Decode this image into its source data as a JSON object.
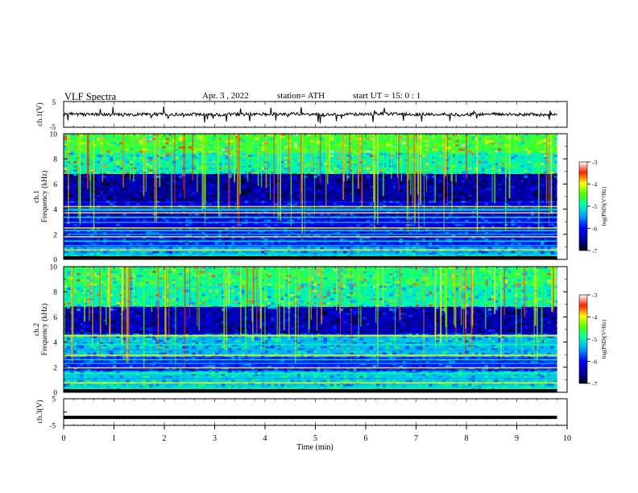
{
  "header": {
    "title": "VLF  Spectra",
    "date": "Apr. 3  , 2022",
    "station": "station= ATH",
    "start": "start  UT  =    15: 0   : 1"
  },
  "chart_data": [
    {
      "type": "line",
      "panel": "ch1-waveform",
      "ylabel": "ch.1(V)",
      "ylim": [
        -5,
        5
      ],
      "yticks": [
        5,
        -5
      ],
      "xlim": [
        0,
        10
      ],
      "data_extent_min": 9.8,
      "baseline": 0,
      "amplitude_typical": 0.6,
      "spike_amplitude_max": 3.5,
      "color": "#000000"
    },
    {
      "type": "heatmap",
      "panel": "ch1-spectrogram",
      "ylabel": "Frequency  (kHz)",
      "channel_label": "ch.1",
      "ylim": [
        0,
        10
      ],
      "yticks": [
        0,
        2,
        4,
        6,
        8,
        10
      ],
      "xlim": [
        0,
        10
      ],
      "data_extent_min": 9.8,
      "colorbar": {
        "label": "log(PSD)(V²/Hz)",
        "range": [
          -7,
          -3
        ],
        "ticks": [
          -3,
          -4,
          -5,
          -6,
          -7
        ]
      },
      "bands": [
        {
          "f0": 0.0,
          "f1": 0.2,
          "level": -7.0
        },
        {
          "f0": 0.2,
          "f1": 1.0,
          "level": -5.4
        },
        {
          "f0": 1.0,
          "f1": 2.3,
          "level": -5.9
        },
        {
          "f0": 2.3,
          "f1": 4.6,
          "level": -6.1
        },
        {
          "f0": 4.6,
          "f1": 6.8,
          "level": -6.5
        },
        {
          "f0": 6.8,
          "f1": 8.5,
          "level": -5.0
        },
        {
          "f0": 8.5,
          "f1": 10.0,
          "level": -4.6
        }
      ],
      "lines_khz": [
        0.35,
        0.75,
        1.1,
        1.45,
        1.8,
        2.0,
        2.3,
        2.5,
        2.95,
        3.35,
        3.7,
        3.9,
        4.0,
        4.2
      ]
    },
    {
      "type": "heatmap",
      "panel": "ch2-spectrogram",
      "ylabel": "Frequency  (kHz)",
      "channel_label": "ch.2",
      "ylim": [
        0,
        10
      ],
      "yticks": [
        0,
        2,
        4,
        6,
        8,
        10
      ],
      "xlim": [
        0,
        10
      ],
      "data_extent_min": 9.8,
      "colorbar": {
        "label": "log(PSD)(V²/Hz)",
        "range": [
          -7,
          -3
        ],
        "ticks": [
          -3,
          -4,
          -5,
          -6,
          -7
        ]
      },
      "bands": [
        {
          "f0": 0.0,
          "f1": 0.2,
          "level": -7.0
        },
        {
          "f0": 0.2,
          "f1": 1.7,
          "level": -5.2
        },
        {
          "f0": 1.7,
          "f1": 2.8,
          "level": -5.9
        },
        {
          "f0": 2.8,
          "f1": 4.6,
          "level": -5.3
        },
        {
          "f0": 4.6,
          "f1": 6.8,
          "level": -6.4
        },
        {
          "f0": 6.8,
          "f1": 8.5,
          "level": -5.0
        },
        {
          "f0": 8.5,
          "f1": 10.0,
          "level": -4.8
        }
      ],
      "lines_khz": [
        0.35,
        0.75,
        1.1,
        1.5,
        1.95,
        2.3,
        2.6,
        2.95,
        3.35,
        3.8,
        4.5
      ]
    },
    {
      "type": "line",
      "panel": "ch3-waveform",
      "ylabel": "ch.3(V)",
      "ylim": [
        -5,
        5
      ],
      "yticks": [
        5,
        0,
        -5
      ],
      "xlim": [
        0,
        10
      ],
      "data_extent_min": 9.8,
      "baseline": -2,
      "color": "#000000"
    }
  ],
  "xaxis": {
    "label": "Time  (min)",
    "ticks": [
      0,
      1,
      2,
      3,
      4,
      5,
      6,
      7,
      8,
      9,
      10
    ]
  }
}
